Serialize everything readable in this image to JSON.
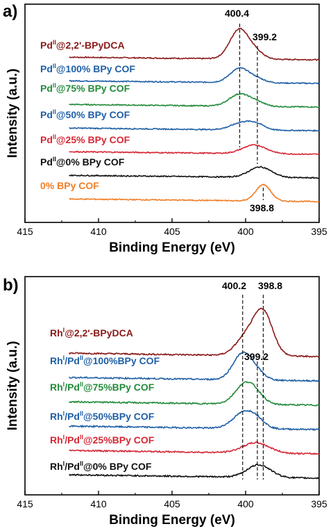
{
  "chart_data": [
    {
      "type": "line",
      "panel": "a)",
      "xlabel": "Binding Energy (eV)",
      "ylabel": "Intensity (a.u.)",
      "xlim": [
        415,
        395
      ],
      "x_ticks": [
        415,
        410,
        405,
        400,
        395
      ],
      "reference_lines": [
        {
          "x": 400.4,
          "label": "400.4"
        },
        {
          "x": 399.2,
          "label": "399.2"
        },
        {
          "x": 398.8,
          "label": "398.8"
        }
      ],
      "series": [
        {
          "prefix": "Pd",
          "sup": "II",
          "rest": "@2,2'-BPyDCA",
          "color": "#8b1a1a",
          "x_range": [
            412,
            395
          ],
          "baseline": 6.0,
          "peaks": [
            [
              400.4,
              0.7,
              0.65
            ],
            [
              399.2,
              0.12,
              0.5
            ]
          ]
        },
        {
          "prefix": "Pd",
          "sup": "II",
          "rest": "@100% BPy COF",
          "color": "#1f5fa6",
          "x_range": [
            412,
            395
          ],
          "baseline": 5.0,
          "peaks": [
            [
              400.4,
              0.33,
              0.65
            ],
            [
              399.2,
              0.08,
              0.55
            ]
          ]
        },
        {
          "prefix": "Pd",
          "sup": "II",
          "rest": "@75% BPy COF",
          "color": "#238b3b",
          "x_range": [
            412,
            395
          ],
          "baseline": 4.0,
          "peaks": [
            [
              400.4,
              0.28,
              0.7
            ],
            [
              399.2,
              0.08,
              0.55
            ]
          ]
        },
        {
          "prefix": "Pd",
          "sup": "II",
          "rest": "@50% BPy COF",
          "color": "#1f5fa6",
          "x_range": [
            412,
            395
          ],
          "baseline": 3.0,
          "peaks": [
            [
              400.2,
              0.17,
              0.75
            ],
            [
              399.2,
              0.1,
              0.55
            ]
          ]
        },
        {
          "prefix": "Pd",
          "sup": "II",
          "rest": "@25% BPy COF",
          "color": "#d62835",
          "x_range": [
            412,
            395
          ],
          "baseline": 2.0,
          "peaks": [
            [
              399.4,
              0.2,
              0.8
            ]
          ]
        },
        {
          "prefix": "Pd",
          "sup": "II",
          "rest": "@0% BPy COF",
          "color": "#111111",
          "x_range": [
            412,
            395
          ],
          "baseline": 1.0,
          "peaks": [
            [
              399.0,
              0.24,
              0.75
            ]
          ]
        },
        {
          "prefix": "0% BPy COF",
          "sup": "",
          "rest": "",
          "color": "#f07e26",
          "x_range": [
            412,
            395
          ],
          "baseline": 0.0,
          "peaks": [
            [
              398.8,
              0.38,
              0.5
            ]
          ]
        }
      ]
    },
    {
      "type": "line",
      "panel": "b)",
      "xlabel": "Binding Energy (eV)",
      "ylabel": "Intensity (a.u.)",
      "xlim": [
        415,
        395
      ],
      "x_ticks": [
        415,
        410,
        405,
        400,
        395
      ],
      "reference_lines": [
        {
          "x": 400.2,
          "label": "400.2"
        },
        {
          "x": 399.2,
          "label": "399.2"
        },
        {
          "x": 398.8,
          "label": "398.8"
        }
      ],
      "series": [
        {
          "prefix": "Rh",
          "sup": "I",
          "rest": "@2,2'-BPyDCA",
          "color": "#8b1a1a",
          "x_range": [
            412,
            395
          ],
          "baseline": 5.0,
          "peaks": [
            [
              398.8,
              0.75,
              0.65
            ],
            [
              400.0,
              0.3,
              0.7
            ]
          ]
        },
        {
          "prefix": "Rh",
          "sup": "I",
          "rest": "/Pd",
          "sup2": "II",
          "rest2": "@100%BPy COF",
          "color": "#1f5fa6",
          "x_range": [
            412,
            395
          ],
          "baseline": 4.0,
          "peaks": [
            [
              400.2,
              0.46,
              0.65
            ],
            [
              399.2,
              0.1,
              0.55
            ]
          ]
        },
        {
          "prefix": "Rh",
          "sup": "I",
          "rest": "/Pd",
          "sup2": "II",
          "rest2": "@75%BPy COF",
          "color": "#238b3b",
          "x_range": [
            412,
            395
          ],
          "baseline": 3.0,
          "peaks": [
            [
              400.0,
              0.36,
              0.7
            ],
            [
              399.2,
              0.08,
              0.55
            ]
          ]
        },
        {
          "prefix": "Rh",
          "sup": "I",
          "rest": "/Pd",
          "sup2": "II",
          "rest2": "@50%BPy COF",
          "color": "#1f5fa6",
          "x_range": [
            412,
            395
          ],
          "baseline": 2.0,
          "peaks": [
            [
              400.1,
              0.28,
              0.75
            ],
            [
              399.2,
              0.1,
              0.55
            ]
          ]
        },
        {
          "prefix": "Rh",
          "sup": "I",
          "rest": "/Pd",
          "sup2": "II",
          "rest2": "@25%BPy COF",
          "color": "#d62835",
          "x_range": [
            412,
            395
          ],
          "baseline": 1.0,
          "peaks": [
            [
              399.3,
              0.18,
              0.9
            ]
          ]
        },
        {
          "prefix": "Rh",
          "sup": "I",
          "rest": "/Pd",
          "sup2": "II",
          "rest2": "@0% BPy COF",
          "color": "#111111",
          "x_range": [
            412,
            395
          ],
          "baseline": 0.0,
          "peaks": [
            [
              399.1,
              0.22,
              0.8
            ]
          ]
        }
      ]
    }
  ]
}
